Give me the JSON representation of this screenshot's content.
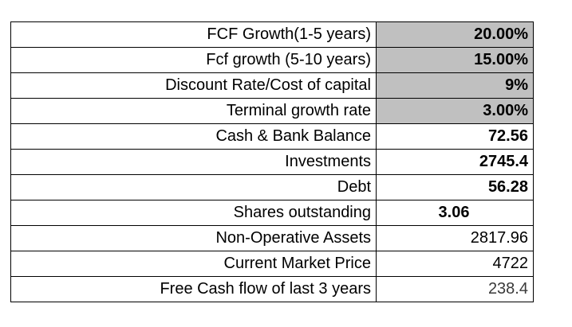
{
  "rows": [
    {
      "label": "FCF Growth(1-5 years)",
      "value": "20.00%"
    },
    {
      "label": "Fcf growth (5-10 years)",
      "value": "15.00%"
    },
    {
      "label": "Discount Rate/Cost of capital",
      "value": "9%"
    },
    {
      "label": "Terminal growth rate ",
      "value": "3.00%"
    },
    {
      "label": "Cash & Bank Balance",
      "value": "72.56"
    },
    {
      "label": "Investments",
      "value": "2745.4"
    },
    {
      "label": "Debt",
      "value": "56.28"
    },
    {
      "label": "Shares outstanding",
      "value": "3.06"
    },
    {
      "label": "Non-Operative Assets",
      "value": "2817.96"
    },
    {
      "label": "Current Market Price",
      "value": "4722"
    },
    {
      "label": "Free Cash flow of last 3 years",
      "value": "238.4"
    }
  ],
  "colors": {
    "input_fill": "#c0c0c0",
    "border": "#000000"
  }
}
